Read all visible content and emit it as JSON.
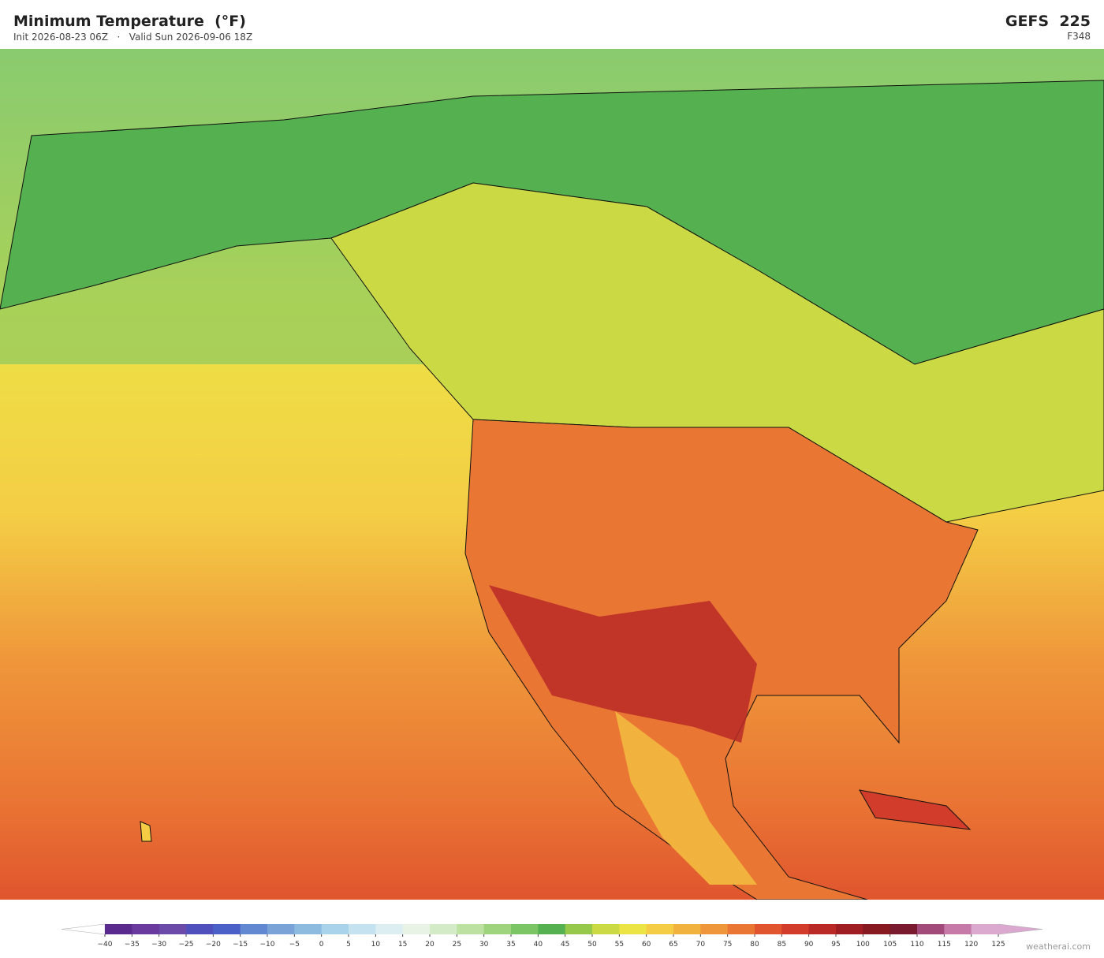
{
  "header": {
    "title": "Minimum Temperature  (°F)",
    "subtitle": "Init 2026-08-23 06Z   ·   Valid Sun 2026-09-06 18Z",
    "model": "GEFS  225",
    "forecast_hour": "F348"
  },
  "colorbar": {
    "ticks": [
      {
        "value": -40,
        "label": "−40"
      },
      {
        "value": -35,
        "label": "−35"
      },
      {
        "value": -30,
        "label": "−30"
      },
      {
        "value": -25,
        "label": "−25"
      },
      {
        "value": -20,
        "label": "−20"
      },
      {
        "value": -15,
        "label": "−15"
      },
      {
        "value": -10,
        "label": "−10"
      },
      {
        "value": -5,
        "label": "−5"
      },
      0,
      5,
      10,
      15,
      20,
      25,
      30,
      35,
      40,
      45,
      50,
      55,
      60,
      65,
      70,
      75,
      80,
      85,
      90,
      95,
      100,
      105,
      110,
      115,
      120,
      125
    ],
    "colors": [
      "#5b2a8f",
      "#6a3a9e",
      "#6b4aaa",
      "#5050bd",
      "#4a62c8",
      "#6188d0",
      "#7aa3d8",
      "#8dbbe0",
      "#a8d3ea",
      "#c4e2ef",
      "#ddeef2",
      "#e8f3e6",
      "#d4ebc8",
      "#bde1a0",
      "#9fd47f",
      "#7cc565",
      "#55b050",
      "#96c94a",
      "#cbd945",
      "#ece445",
      "#f4cd45",
      "#f2b23e",
      "#ef963a",
      "#ea7634",
      "#e0552e",
      "#d13d2a",
      "#b92a27",
      "#9e1e22",
      "#861a20",
      "#7a1a2e",
      "#a24a7a",
      "#c57aa8",
      "#dba8cf"
    ],
    "under_color": "#ffffff",
    "over_color": "#dba8cf"
  },
  "watermark": "weatherai.com"
}
